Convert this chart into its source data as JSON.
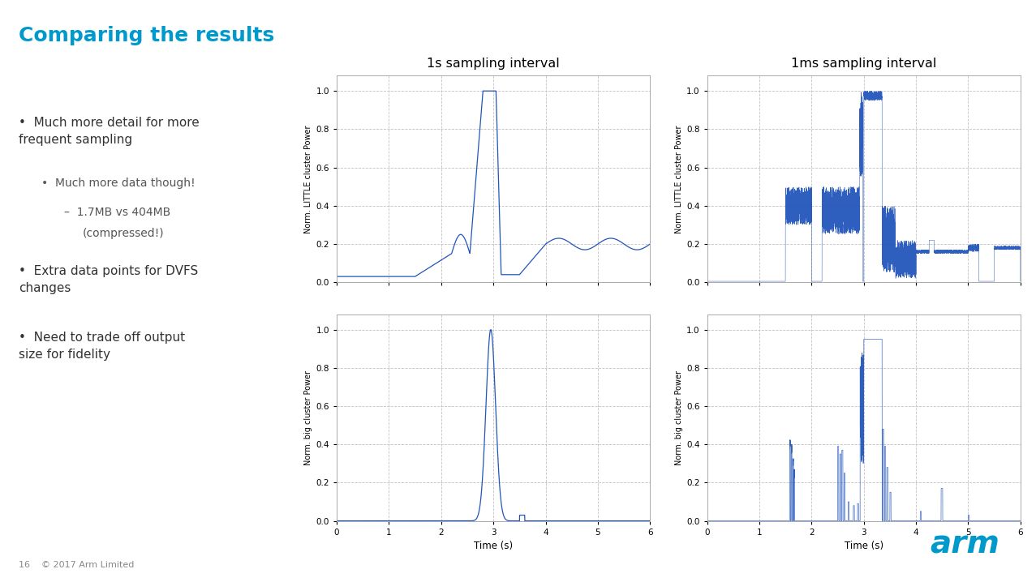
{
  "title": "Comparing the results",
  "title_color": "#0099cc",
  "background_color": "#ffffff",
  "chart1_title": "1s sampling interval",
  "chart2_title": "1ms sampling interval",
  "ylabel_little": "Norm. LITTLE cluster Power",
  "ylabel_big": "Norm. big cluster Power",
  "xlabel": "Time (s)",
  "xlim": [
    0,
    6
  ],
  "ylim": [
    0.0,
    1.08
  ],
  "xticks": [
    0,
    1,
    2,
    3,
    4,
    5,
    6
  ],
  "yticks": [
    0.0,
    0.2,
    0.4,
    0.6,
    0.8,
    1.0
  ],
  "line_color": "#2255bb",
  "grid_color": "#bbbbbb",
  "footer_text": "16    © 2017 Arm Limited",
  "arm_color": "#0099cc",
  "bullet1": "Much more detail for more\nfrequent sampling",
  "bullet2": "Extra data points for DVFS\nchanges",
  "bullet3": "Need to trade off output\nsize for fidelity",
  "sub_bullet": "Much more data though!",
  "sub_sub_bullet1": "1.7MB vs 404MB",
  "sub_sub_bullet2": "(compressed!)"
}
